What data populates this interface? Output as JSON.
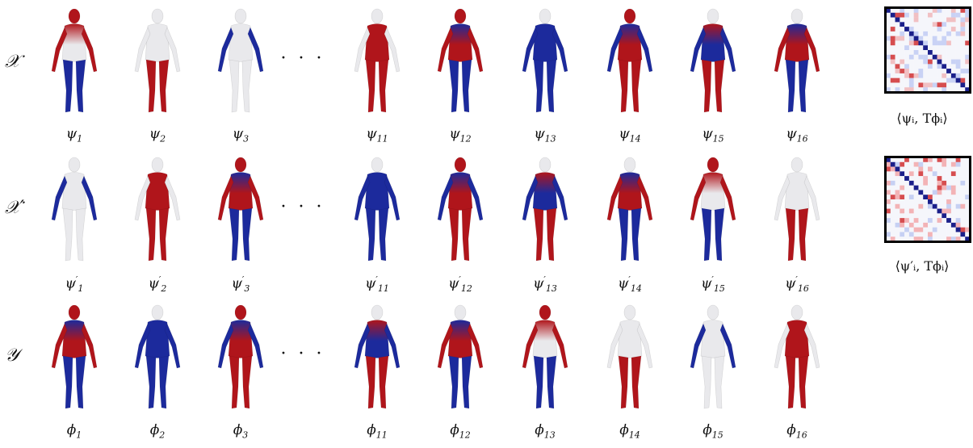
{
  "rows": [
    {
      "id": "x",
      "label": "𝒳",
      "captions": [
        {
          "base": "ψ",
          "sub": "1",
          "prime": false
        },
        {
          "base": "ψ",
          "sub": "2",
          "prime": false
        },
        {
          "base": "ψ",
          "sub": "3",
          "prime": false
        },
        {
          "base": "ψ",
          "sub": "11",
          "prime": false
        },
        {
          "base": "ψ",
          "sub": "12",
          "prime": false
        },
        {
          "base": "ψ",
          "sub": "13",
          "prime": false
        },
        {
          "base": "ψ",
          "sub": "14",
          "prime": false
        },
        {
          "base": "ψ",
          "sub": "15",
          "prime": false
        },
        {
          "base": "ψ",
          "sub": "16",
          "prime": false
        }
      ]
    },
    {
      "id": "xprime",
      "label": "𝒳′",
      "captions": [
        {
          "base": "ψ",
          "sub": "1",
          "prime": true
        },
        {
          "base": "ψ",
          "sub": "2",
          "prime": true
        },
        {
          "base": "ψ",
          "sub": "3",
          "prime": true
        },
        {
          "base": "ψ",
          "sub": "11",
          "prime": true
        },
        {
          "base": "ψ",
          "sub": "12",
          "prime": true
        },
        {
          "base": "ψ",
          "sub": "13",
          "prime": true
        },
        {
          "base": "ψ",
          "sub": "14",
          "prime": true
        },
        {
          "base": "ψ",
          "sub": "15",
          "prime": true
        },
        {
          "base": "ψ",
          "sub": "16",
          "prime": true
        }
      ]
    },
    {
      "id": "y",
      "label": "𝒴",
      "captions": [
        {
          "base": "ϕ",
          "sub": "1",
          "prime": false
        },
        {
          "base": "ϕ",
          "sub": "2",
          "prime": false
        },
        {
          "base": "ϕ",
          "sub": "3",
          "prime": false
        },
        {
          "base": "ϕ",
          "sub": "11",
          "prime": false
        },
        {
          "base": "ϕ",
          "sub": "12",
          "prime": false
        },
        {
          "base": "ϕ",
          "sub": "13",
          "prime": false
        },
        {
          "base": "ϕ",
          "sub": "14",
          "prime": false
        },
        {
          "base": "ϕ",
          "sub": "15",
          "prime": false
        },
        {
          "base": "ϕ",
          "sub": "16",
          "prime": false
        }
      ]
    }
  ],
  "ellipsis": "· · ·",
  "matrices": [
    {
      "caption": "⟨ψᵢ, Tϕᵢ⟩"
    },
    {
      "caption": "⟨ψ′ᵢ, Tϕᵢ⟩"
    }
  ],
  "colors": {
    "red": "#b0151b",
    "white": "#e9e9ec",
    "blue": "#1c2a9c"
  }
}
